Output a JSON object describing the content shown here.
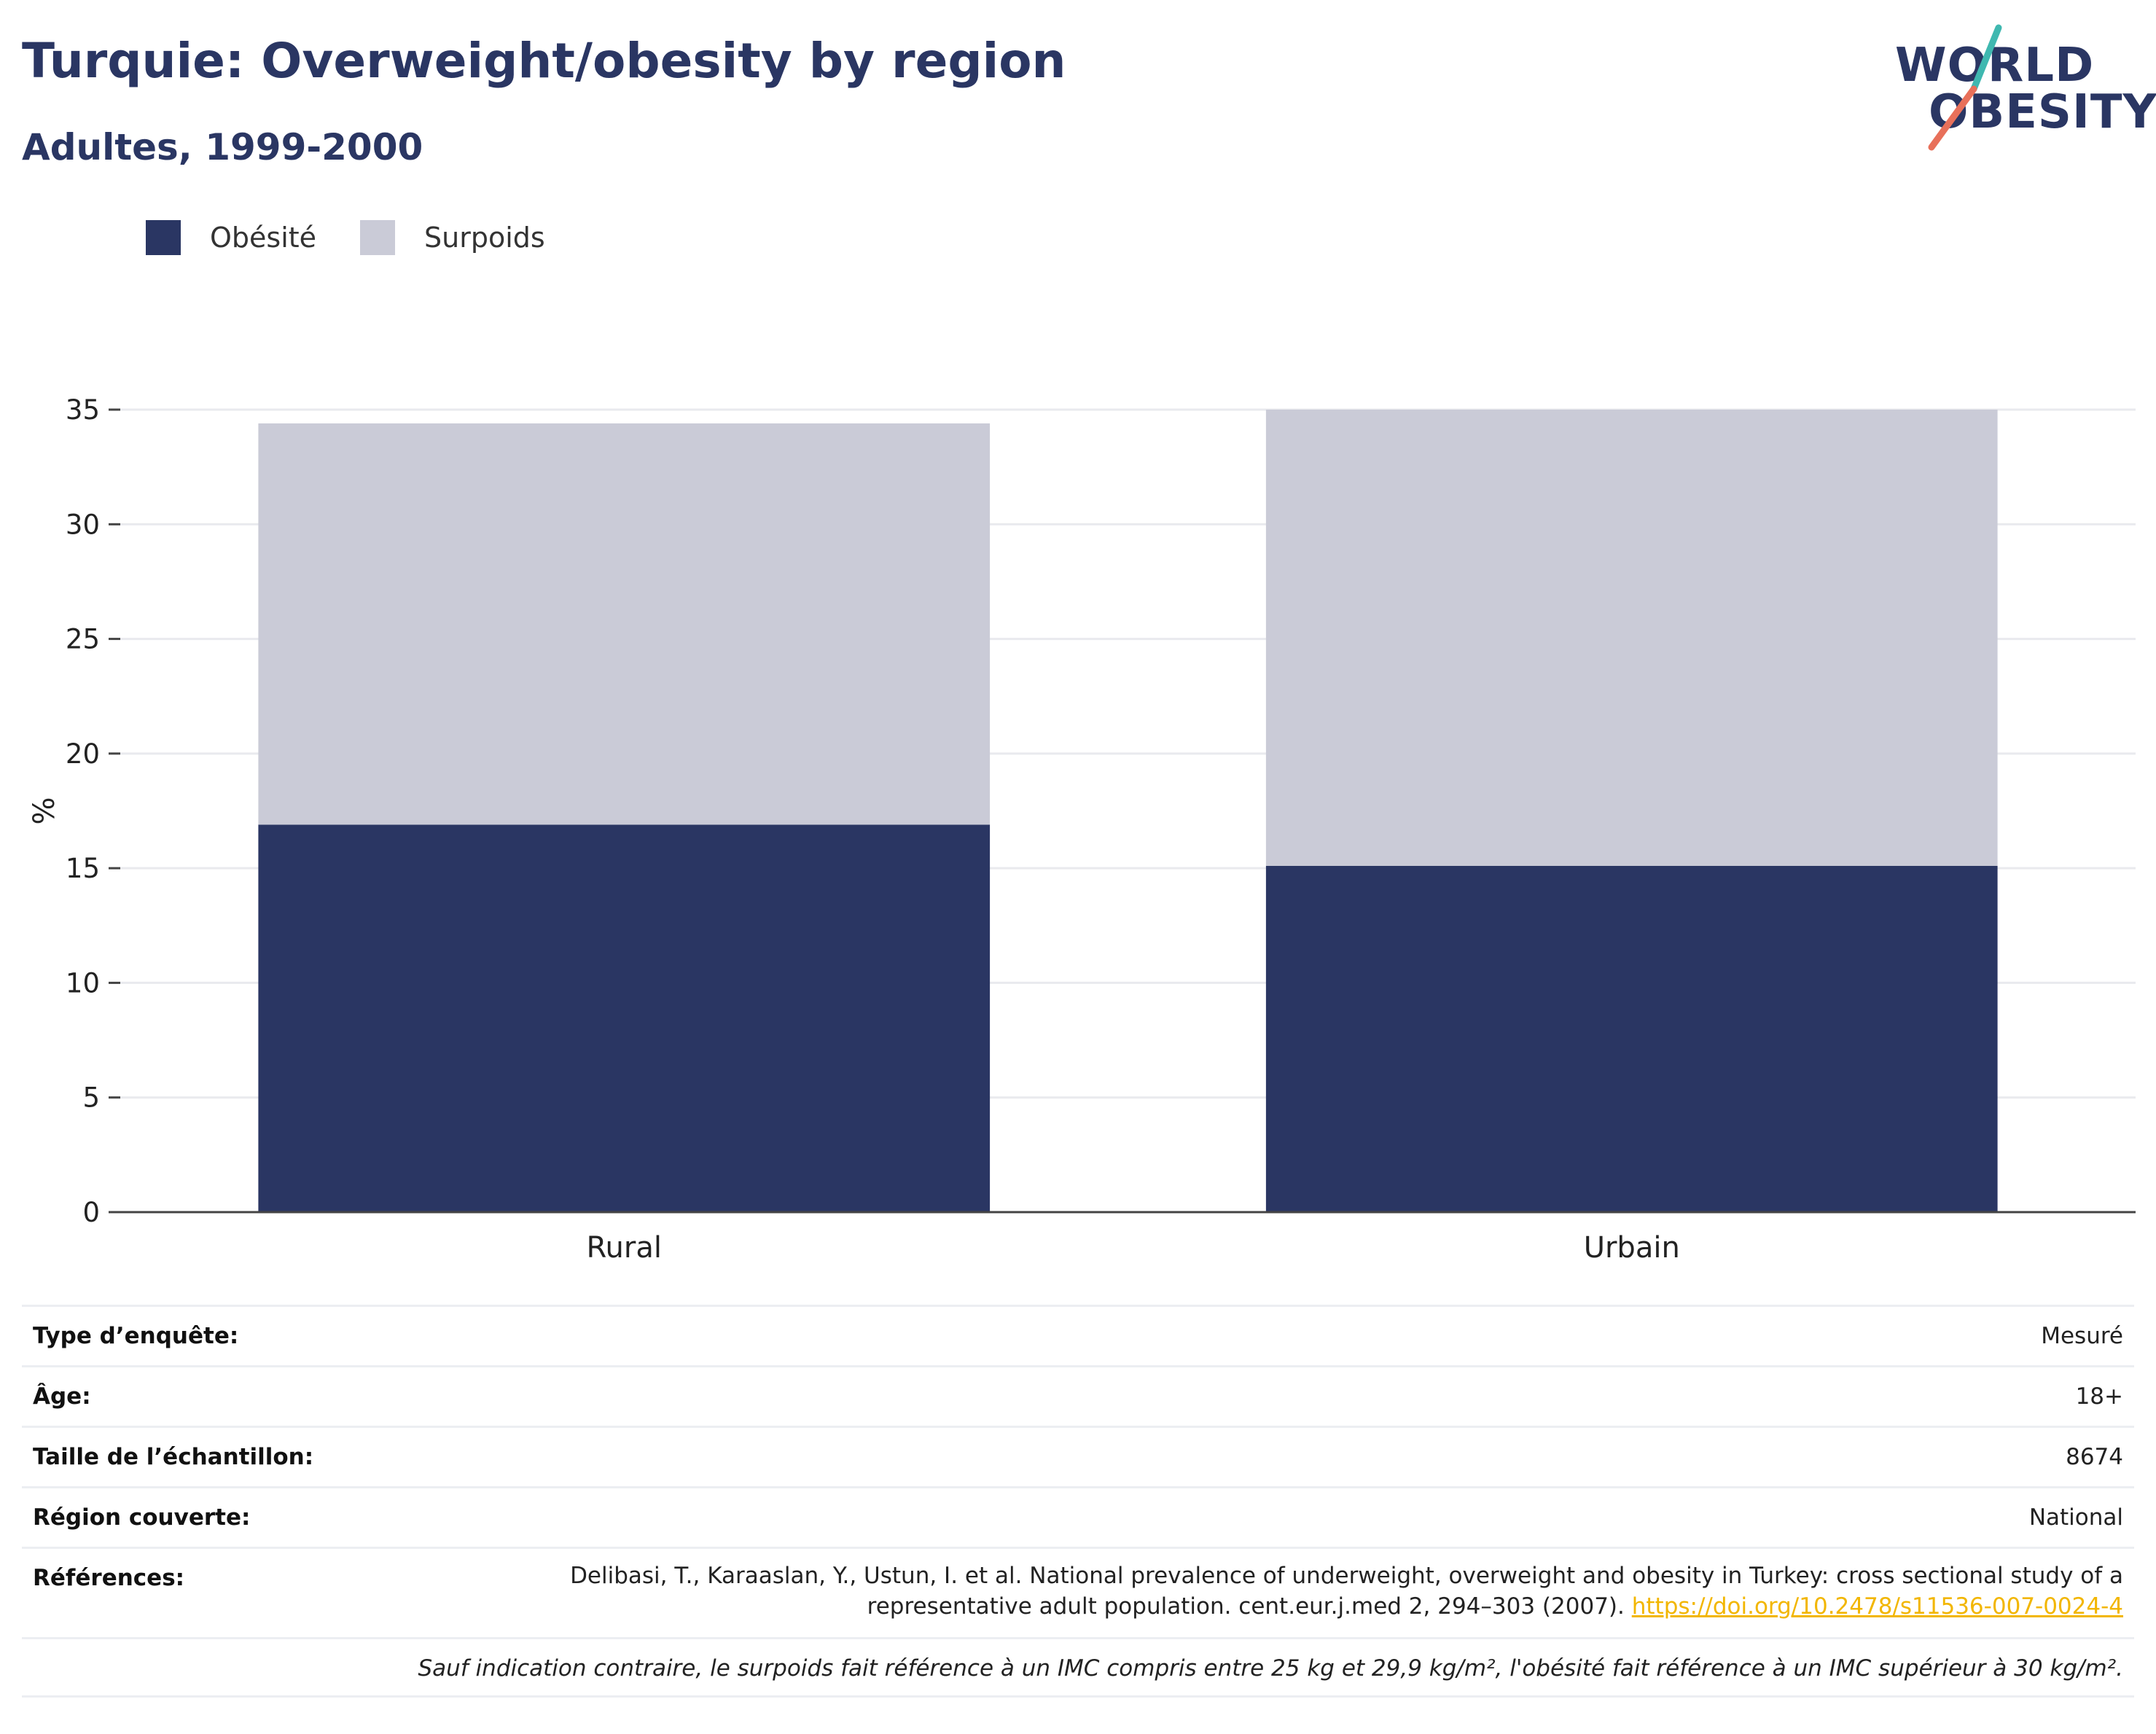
{
  "header": {
    "title": "Turquie: Overweight/obesity by region",
    "subtitle": "Adultes, 1999-2000"
  },
  "logo": {
    "line1": "WORLD",
    "line2": "OBESITY",
    "colors": {
      "text": "#2a3663",
      "slash_top": "#3fb8b0",
      "slash_bottom": "#e8705a"
    }
  },
  "legend": [
    {
      "label": "Obésité",
      "color": "#2a3663"
    },
    {
      "label": "Surpoids",
      "color": "#cacbd7"
    }
  ],
  "chart_data": {
    "type": "bar",
    "stacked": true,
    "categories": [
      "Rural",
      "Urbain"
    ],
    "series": [
      {
        "name": "Obésité",
        "values": [
          16.9,
          15.1
        ],
        "color": "#2a3663"
      },
      {
        "name": "Surpoids",
        "values": [
          17.5,
          19.9
        ],
        "color": "#cacbd7"
      }
    ],
    "xlabel": "",
    "ylabel": "%",
    "ylim": [
      0,
      35
    ],
    "yticks": [
      "0",
      "5",
      "10",
      "15",
      "20",
      "25",
      "30",
      "35"
    ],
    "grid": true,
    "legend_position": "top-left"
  },
  "meta": {
    "survey_type": {
      "label": "Type d’enquête:",
      "value": "Mesuré"
    },
    "age": {
      "label": "Âge:",
      "value": "18+"
    },
    "sample_size": {
      "label": "Taille de l’échantillon:",
      "value": "8674"
    },
    "region": {
      "label": "Région couverte:",
      "value": "National"
    },
    "references": {
      "label": "Références:",
      "text": "Delibasi, T., Karaaslan, Y., Ustun, I. et al. National prevalence of underweight, overweight and obesity in Turkey: cross sectional study of a representative adult population. cent.eur.j.med 2, 294–303 (2007).",
      "link": "https://doi.org/10.2478/s11536-007-0024-4"
    },
    "note": "Sauf indication contraire, le surpoids fait référence à un IMC compris entre 25 kg et 29,9 kg/m², l'obésité fait référence à un IMC supérieur à 30 kg/m²."
  }
}
